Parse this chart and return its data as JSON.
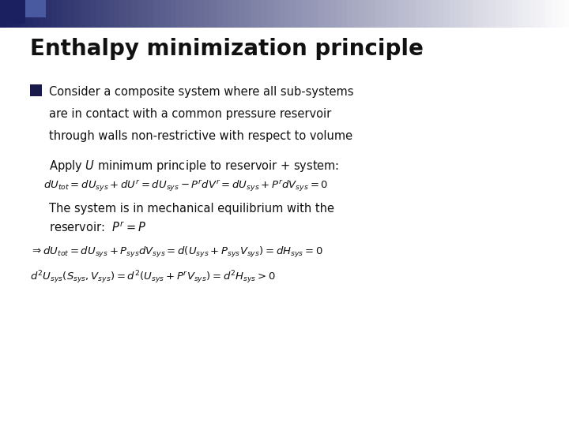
{
  "title": "Enthalpy minimization principle",
  "title_fontsize": 20,
  "bg_color": "#ffffff",
  "bullet_color": "#1a1a4a",
  "text_color": "#111111",
  "bullet_line1": "Consider a composite system where all sub-systems",
  "bullet_line2": "are in contact with a common pressure reservoir",
  "bullet_line3": "through walls non-restrictive with respect to volume",
  "apply_text": "Apply $\\mathit{U}$ minimum principle to reservoir + system:",
  "eq1": "$dU_{tot} = dU_{sys} + dU^{r} = dU_{sys} - P^{r}dV^{r} = dU_{sys} + P^{r}dV_{sys} = 0$",
  "mech_line1": "The system is in mechanical equilibrium with the",
  "mech_line2": "reservoir:  $P^{r} = P$",
  "eq2": "$\\Rightarrow dU_{tot} = dU_{sys} + P_{sys}dV_{sys} = d(U_{sys} + P_{sys}V_{sys}) = dH_{sys} = 0$",
  "eq3": "$d^{2}U_{sys}(S_{sys}, V_{sys}) = d^{2}(U_{sys} + P^{r}V_{sys}) = d^{2}H_{sys} > 0$",
  "header_dark": "#1a2060",
  "header_mid": "#3a5aa0",
  "header_light": "#d8e4f0"
}
